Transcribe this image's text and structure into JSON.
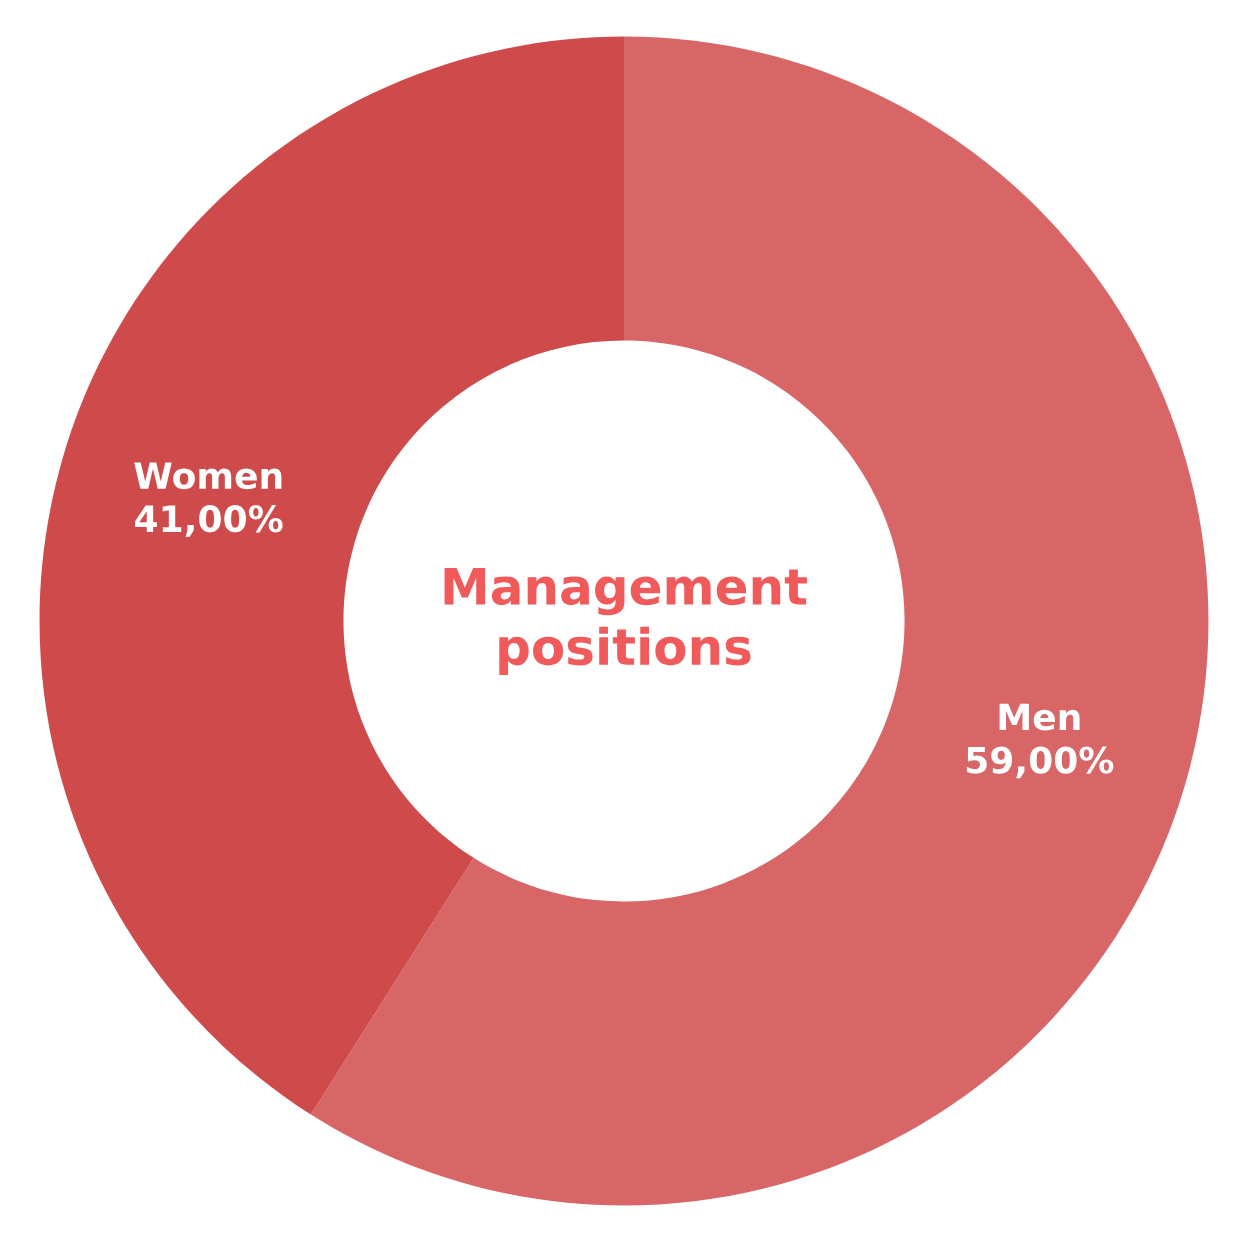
{
  "chart_data": {
    "type": "donut",
    "title": "Management positions",
    "categories": [
      "Men",
      "Women"
    ],
    "values": [
      59,
      41
    ],
    "value_labels": [
      "59,00%",
      "41,00%"
    ],
    "colors": [
      "#d96666",
      "#cf4a4a"
    ],
    "legend": false
  }
}
